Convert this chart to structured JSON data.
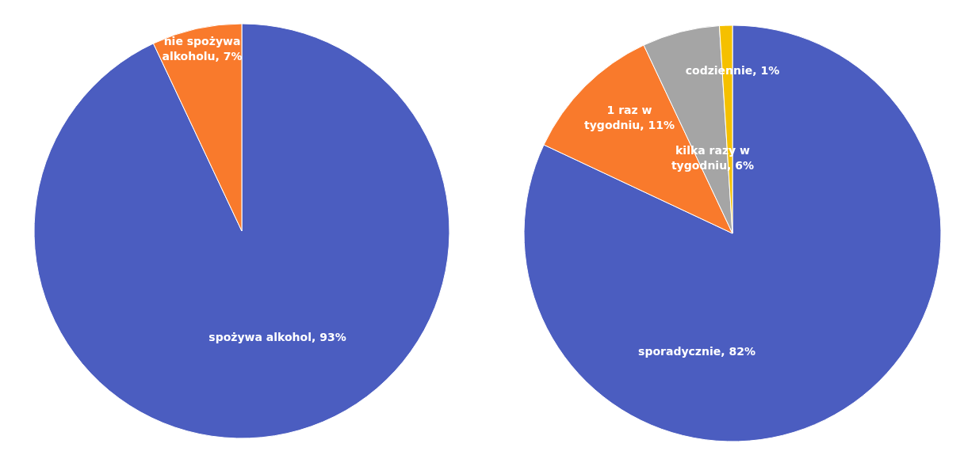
{
  "chart_data": [
    {
      "type": "pie",
      "categories": [
        "spożywa alkohol",
        "nie spożywa alkoholu"
      ],
      "values": [
        93,
        7
      ],
      "colors": [
        "#4b5dc0",
        "#f97a2c"
      ],
      "value_labels": [
        "93%",
        "7%"
      ]
    },
    {
      "type": "pie",
      "categories": [
        "sporadycznie",
        "1 raz w tygodniu",
        "kilka razy w tygodniu",
        "codziennie"
      ],
      "values": [
        82,
        11,
        6,
        1
      ],
      "colors": [
        "#4b5dc0",
        "#f97a2c",
        "#a5a5a5",
        "#f5c000"
      ],
      "value_labels": [
        "82%",
        "11%",
        "6%",
        "1%"
      ]
    }
  ]
}
